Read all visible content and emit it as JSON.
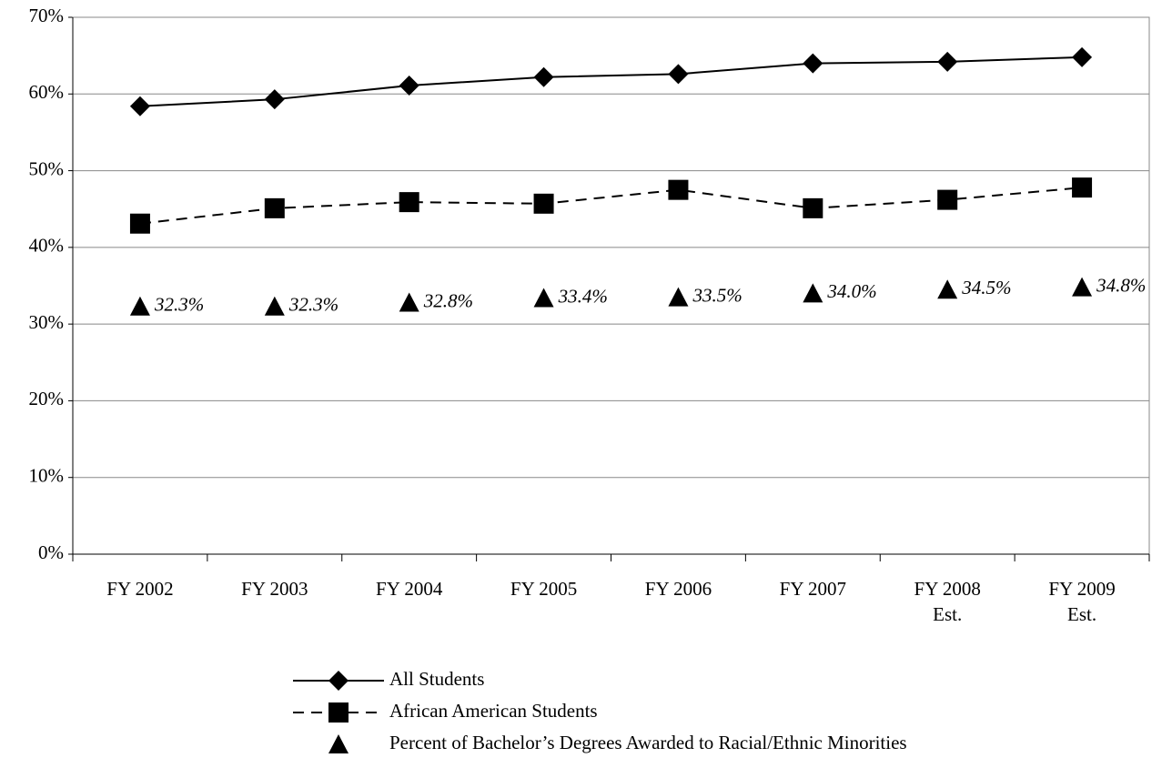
{
  "chart_data": {
    "type": "line",
    "categories": [
      "FY 2002",
      "FY 2003",
      "FY 2004",
      "FY 2005",
      "FY 2006",
      "FY 2007",
      "FY 2008 Est.",
      "FY 2009 Est."
    ],
    "series": [
      {
        "name": "All Students",
        "color": "#000000",
        "marker": "diamond",
        "line": "solid",
        "values": [
          58.4,
          59.3,
          61.1,
          62.2,
          62.6,
          64.0,
          64.2,
          64.8
        ]
      },
      {
        "name": "African American Students",
        "color": "#000000",
        "marker": "square",
        "line": "dashed",
        "values": [
          43.1,
          45.1,
          45.9,
          45.7,
          47.5,
          45.1,
          46.2,
          47.8
        ]
      },
      {
        "name": "Percent of Bachelor’s Degrees Awarded to Racial/Ethnic Minorities",
        "color": "#000000",
        "marker": "triangle",
        "line": "none",
        "values": [
          32.3,
          32.3,
          32.8,
          33.4,
          33.5,
          34.0,
          34.5,
          34.8
        ],
        "value_labels": [
          "32.3%",
          "32.3%",
          "32.8%",
          "33.4%",
          "33.5%",
          "34.0%",
          "34.5%",
          "34.8%"
        ]
      }
    ],
    "ylim": [
      0,
      70
    ],
    "yticks": [
      {
        "value": 0,
        "label": "0%"
      },
      {
        "value": 10,
        "label": "10%"
      },
      {
        "value": 20,
        "label": "20%"
      },
      {
        "value": 30,
        "label": "30%"
      },
      {
        "value": 40,
        "label": "40%"
      },
      {
        "value": 50,
        "label": "50%"
      },
      {
        "value": 60,
        "label": "60%"
      },
      {
        "value": 70,
        "label": "70%"
      }
    ],
    "grid": true
  }
}
